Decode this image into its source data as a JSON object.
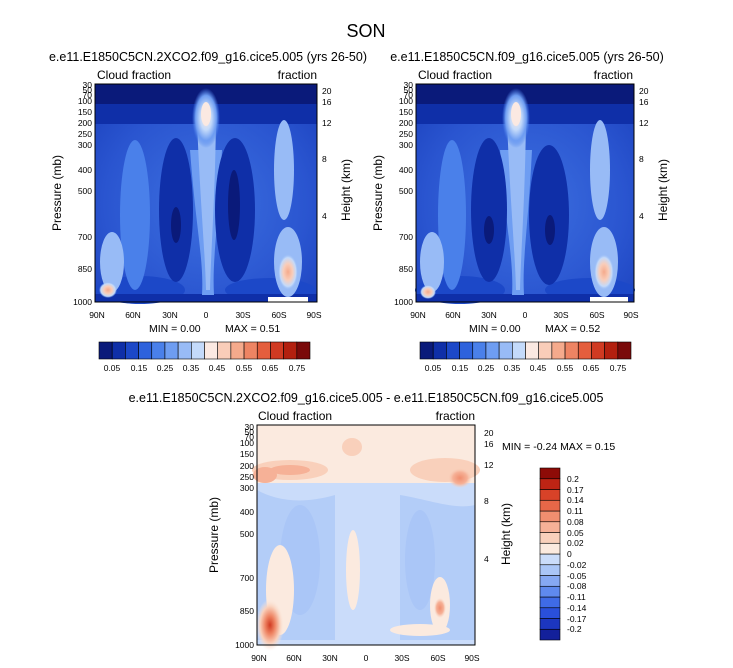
{
  "figure_title": "SON",
  "chart_data": [
    {
      "type": "heatmap",
      "title": "e.e11.E1850C5CN.2XCO2.f09_g16.cice5.005 (yrs 26-50)",
      "left_label": "Cloud fraction",
      "right_label": "fraction",
      "ylabel": "Pressure (mb)",
      "y2label": "Height (km)",
      "x_tick_labels": [
        "90N",
        "60N",
        "30N",
        "0",
        "30S",
        "60S",
        "90S"
      ],
      "y_tick_labels": [
        "30",
        "50",
        "70",
        "100",
        "150",
        "200",
        "250",
        "300",
        "400",
        "500",
        "700",
        "850",
        "1000"
      ],
      "y2_tick_labels": [
        "20",
        "16",
        "12",
        "8",
        "4"
      ],
      "min_text": "MIN =   0.00",
      "max_text": "MAX =    0.51",
      "colorbar_labels": [
        "0.05",
        "0.15",
        "0.25",
        "0.35",
        "0.45",
        "0.55",
        "0.65",
        "0.75"
      ]
    },
    {
      "type": "heatmap",
      "title": "e.e11.E1850C5CN.f09_g16.cice5.005 (yrs 26-50)",
      "left_label": "Cloud fraction",
      "right_label": "fraction",
      "ylabel": "Pressure (mb)",
      "y2label": "Height (km)",
      "x_tick_labels": [
        "90N",
        "60N",
        "30N",
        "0",
        "30S",
        "60S",
        "90S"
      ],
      "y_tick_labels": [
        "30",
        "50",
        "70",
        "100",
        "150",
        "200",
        "250",
        "300",
        "400",
        "500",
        "700",
        "850",
        "1000"
      ],
      "y2_tick_labels": [
        "20",
        "16",
        "12",
        "8",
        "4"
      ],
      "min_text": "MIN =   0.00",
      "max_text": "MAX =    0.52",
      "colorbar_labels": [
        "0.05",
        "0.15",
        "0.25",
        "0.35",
        "0.45",
        "0.55",
        "0.65",
        "0.75"
      ]
    },
    {
      "type": "heatmap",
      "title": "e.e11.E1850C5CN.2XCO2.f09_g16.cice5.005 - e.e11.E1850C5CN.f09_g16.cice5.005",
      "left_label": "Cloud fraction",
      "right_label": "fraction",
      "ylabel": "Pressure (mb)",
      "y2label": "Height (km)",
      "x_tick_labels": [
        "90N",
        "60N",
        "30N",
        "0",
        "30S",
        "60S",
        "90S"
      ],
      "y_tick_labels": [
        "30",
        "50",
        "70",
        "100",
        "150",
        "200",
        "250",
        "300",
        "400",
        "500",
        "700",
        "850",
        "1000"
      ],
      "y2_tick_labels": [
        "20",
        "16",
        "12",
        "8",
        "4"
      ],
      "minmax_text": "MIN =  -0.24  MAX =   0.15",
      "colorbar_labels": [
        "0.2",
        "0.17",
        "0.14",
        "0.11",
        "0.08",
        "0.05",
        "0.02",
        "0",
        "-0.02",
        "-0.05",
        "-0.08",
        "-0.11",
        "-0.14",
        "-0.17",
        "-0.2"
      ]
    }
  ],
  "colors": {
    "abs_scale": [
      "#0a1a7a",
      "#0f2fa8",
      "#1c48c8",
      "#2e62dc",
      "#4a80ea",
      "#6e9df2",
      "#98bbf6",
      "#c4dafa",
      "#fbe9e2",
      "#f9cdb9",
      "#f5aa8c",
      "#ee8463",
      "#e45e3d",
      "#d03a22",
      "#b3200f",
      "#7a0a0a"
    ],
    "diff_scale": [
      "#13209a",
      "#1c36c0",
      "#2a50da",
      "#3f6be6",
      "#5f8aee",
      "#86a9f3",
      "#aac6f7",
      "#cadcfa",
      "#fbeadf",
      "#f9d0bb",
      "#f6b197",
      "#f08e6f",
      "#e76748",
      "#d84228",
      "#bd2414",
      "#8e0b07"
    ]
  }
}
